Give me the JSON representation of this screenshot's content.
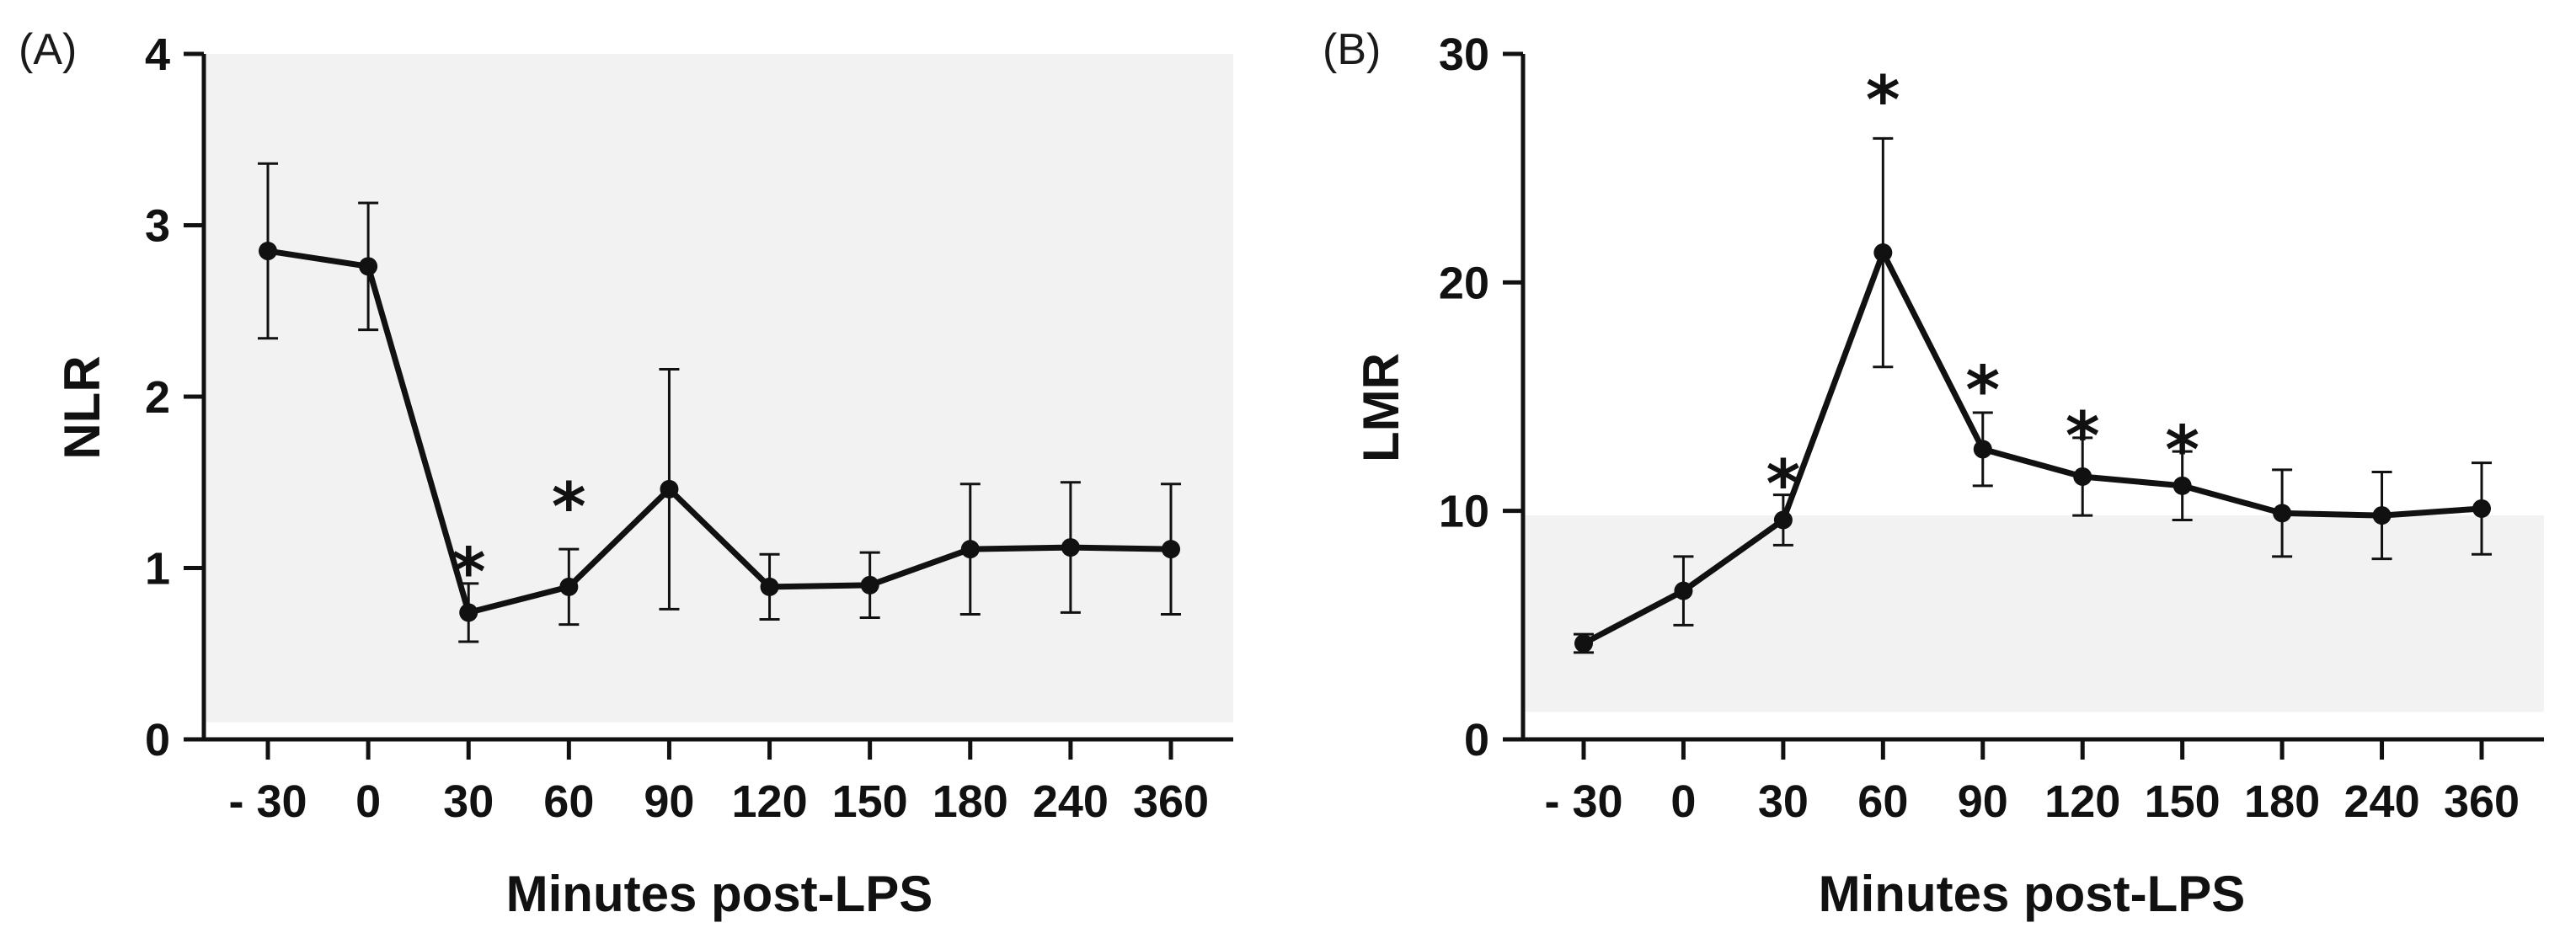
{
  "chart_data": [
    {
      "type": "line",
      "panel_label": "(A)",
      "xlabel": "Minutes post-LPS",
      "ylabel": "NLR",
      "categories": [
        "- 30",
        "0",
        "30",
        "60",
        "90",
        "120",
        "150",
        "180",
        "240",
        "360"
      ],
      "ylim": [
        0,
        4
      ],
      "yticks": [
        "0",
        "1",
        "2",
        "3",
        "4"
      ],
      "reference_band": [
        0.1,
        4.0
      ],
      "series": [
        {
          "values": [
            2.85,
            2.76,
            0.74,
            0.89,
            1.46,
            0.89,
            0.9,
            1.11,
            1.12,
            1.11
          ],
          "error": [
            0.51,
            0.37,
            0.17,
            0.22,
            0.7,
            0.19,
            0.19,
            0.38,
            0.38,
            0.38
          ]
        }
      ],
      "annotations": [
        {
          "category": "30",
          "y": 1.02,
          "text": "*"
        },
        {
          "category": "60",
          "y": 1.4,
          "text": "*"
        }
      ],
      "grid": false
    },
    {
      "type": "line",
      "panel_label": "(B)",
      "xlabel": "Minutes post-LPS",
      "ylabel": "LMR",
      "categories": [
        "- 30",
        "0",
        "30",
        "60",
        "90",
        "120",
        "150",
        "180",
        "240",
        "360"
      ],
      "ylim": [
        0,
        30
      ],
      "yticks": [
        "0",
        "10",
        "20",
        "30"
      ],
      "reference_band": [
        1.2,
        9.8
      ],
      "series": [
        {
          "values": [
            4.2,
            6.5,
            9.6,
            21.3,
            12.7,
            11.5,
            11.1,
            9.9,
            9.8,
            10.1
          ],
          "error": [
            0.4,
            1.5,
            1.1,
            5.0,
            1.6,
            1.7,
            1.5,
            1.9,
            1.9,
            2.0
          ]
        }
      ],
      "annotations": [
        {
          "category": "30",
          "y": 11.5,
          "text": "*"
        },
        {
          "category": "60",
          "y": 28.3,
          "text": "*"
        },
        {
          "category": "90",
          "y": 15.6,
          "text": "*"
        },
        {
          "category": "120",
          "y": 13.6,
          "text": "*"
        },
        {
          "category": "150",
          "y": 13.0,
          "text": "*"
        }
      ],
      "grid": false
    }
  ]
}
